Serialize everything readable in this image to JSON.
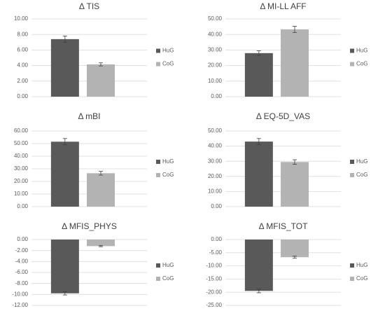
{
  "chart_data": [
    {
      "type": "bar",
      "title": "Δ TIS",
      "series": [
        {
          "name": "HuG",
          "color": "#595959",
          "values": [
            7.4
          ],
          "errors": [
            0.4
          ]
        },
        {
          "name": "CoG",
          "color": "#b3b3b3",
          "values": [
            4.15
          ],
          "errors": [
            0.2
          ]
        }
      ],
      "ylim": [
        0,
        10
      ],
      "grid": true,
      "legend": "right",
      "yticks": [
        {
          "value": 0,
          "label": "0.00"
        },
        {
          "value": 2,
          "label": "2.00"
        },
        {
          "value": 4,
          "label": "4.00"
        },
        {
          "value": 6,
          "label": "6.00"
        },
        {
          "value": 8,
          "label": "8.00"
        },
        {
          "value": 10,
          "label": "10.00"
        }
      ]
    },
    {
      "type": "bar",
      "title": "Δ MI-LL AFF",
      "series": [
        {
          "name": "HuG",
          "color": "#595959",
          "values": [
            28
          ],
          "errors": [
            1.5
          ]
        },
        {
          "name": "CoG",
          "color": "#b3b3b3",
          "values": [
            43.3
          ],
          "errors": [
            2
          ]
        }
      ],
      "ylim": [
        0,
        50
      ],
      "grid": true,
      "legend": "right",
      "yticks": [
        {
          "value": 0,
          "label": "0.00"
        },
        {
          "value": 10,
          "label": "10.00"
        },
        {
          "value": 20,
          "label": "20.00"
        },
        {
          "value": 30,
          "label": "30.00"
        },
        {
          "value": 40,
          "label": "40.00"
        },
        {
          "value": 50,
          "label": "50.00"
        }
      ]
    },
    {
      "type": "bar",
      "title": "Δ mBI",
      "series": [
        {
          "name": "HuG",
          "color": "#595959",
          "values": [
            51.5
          ],
          "errors": [
            2.5
          ]
        },
        {
          "name": "CoG",
          "color": "#b3b3b3",
          "values": [
            26.5
          ],
          "errors": [
            1.5
          ]
        }
      ],
      "ylim": [
        0,
        60
      ],
      "grid": true,
      "legend": "right",
      "yticks": [
        {
          "value": 0,
          "label": "0.00"
        },
        {
          "value": 10,
          "label": "10.00"
        },
        {
          "value": 20,
          "label": "20.00"
        },
        {
          "value": 30,
          "label": "30.00"
        },
        {
          "value": 40,
          "label": "40.00"
        },
        {
          "value": 50,
          "label": "50.00"
        },
        {
          "value": 60,
          "label": "60.00"
        }
      ]
    },
    {
      "type": "bar",
      "title": "Δ EQ-5D_VAS",
      "series": [
        {
          "name": "HuG",
          "color": "#595959",
          "values": [
            43
          ],
          "errors": [
            2
          ]
        },
        {
          "name": "CoG",
          "color": "#b3b3b3",
          "values": [
            29.5
          ],
          "errors": [
            1.5
          ]
        }
      ],
      "ylim": [
        0,
        50
      ],
      "grid": true,
      "legend": "right",
      "yticks": [
        {
          "value": 0,
          "label": "0.00"
        },
        {
          "value": 10,
          "label": "10.00"
        },
        {
          "value": 20,
          "label": "20.00"
        },
        {
          "value": 30,
          "label": "30.00"
        },
        {
          "value": 40,
          "label": "40.00"
        },
        {
          "value": 50,
          "label": "50.00"
        }
      ]
    },
    {
      "type": "bar",
      "title": "Δ MFIS_PHYS",
      "series": [
        {
          "name": "HuG",
          "color": "#595959",
          "values": [
            -9.8
          ],
          "errors": [
            0.3
          ]
        },
        {
          "name": "CoG",
          "color": "#b3b3b3",
          "values": [
            -1.2
          ],
          "errors": [
            0.1
          ]
        }
      ],
      "ylim": [
        -12,
        0
      ],
      "grid": true,
      "legend": "right",
      "yticks": [
        {
          "value": 0,
          "label": "0.00"
        },
        {
          "value": -2,
          "label": "-2.00"
        },
        {
          "value": -4,
          "label": "-4.00"
        },
        {
          "value": -6,
          "label": "-6.00"
        },
        {
          "value": -8,
          "label": "-8.00"
        },
        {
          "value": -10,
          "label": "-10.00"
        },
        {
          "value": -12,
          "label": "-12.00"
        }
      ]
    },
    {
      "type": "bar",
      "title": "Δ MFIS_TOT",
      "series": [
        {
          "name": "HuG",
          "color": "#595959",
          "values": [
            -19.5
          ],
          "errors": [
            0.7
          ]
        },
        {
          "name": "CoG",
          "color": "#b3b3b3",
          "values": [
            -6.7
          ],
          "errors": [
            0.4
          ]
        }
      ],
      "ylim": [
        -25,
        0
      ],
      "grid": true,
      "legend": "right",
      "yticks": [
        {
          "value": 0,
          "label": "0.00"
        },
        {
          "value": -5,
          "label": "-5.00"
        },
        {
          "value": -10,
          "label": "-10.00"
        },
        {
          "value": -15,
          "label": "-15.00"
        },
        {
          "value": -20,
          "label": "-20.00"
        },
        {
          "value": -25,
          "label": "-25.00"
        }
      ]
    }
  ]
}
